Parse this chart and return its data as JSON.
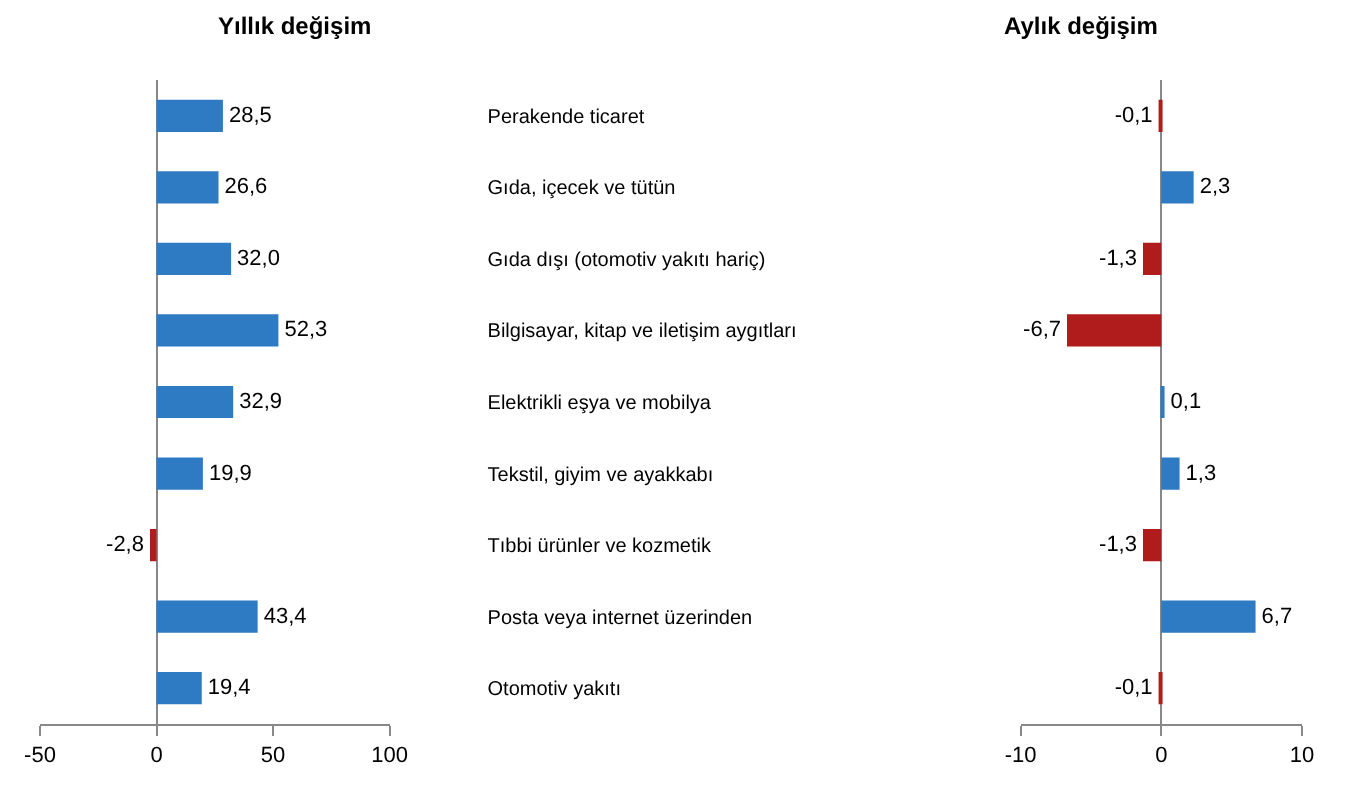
{
  "chart_data": [
    {
      "type": "bar",
      "orientation": "horizontal",
      "title": "Yıllık değişim",
      "categories": [
        "Perakende ticaret",
        "Gıda, içecek ve tütün",
        "Gıda dışı (otomotiv yakıtı hariç)",
        "Bilgisayar, kitap ve iletişim aygıtları",
        "Elektrikli eşya ve mobilya",
        "Tekstil, giyim ve ayakkabı",
        "Tıbbi ürünler ve kozmetik",
        "Posta veya internet üzerinden",
        "Otomotiv yakıtı"
      ],
      "values": [
        28.5,
        26.6,
        32.0,
        52.3,
        32.9,
        19.9,
        -2.8,
        43.4,
        19.4
      ],
      "value_labels": [
        "28,5",
        "26,6",
        "32,0",
        "52,3",
        "32,9",
        "19,9",
        "-2,8",
        "43,4",
        "19,4"
      ],
      "colors": [
        "#2e7bc4",
        "#2e7bc4",
        "#2e7bc4",
        "#2e7bc4",
        "#2e7bc4",
        "#2e7bc4",
        "#b01c1c",
        "#2e7bc4",
        "#2e7bc4"
      ],
      "xlim": [
        -50,
        100
      ],
      "xticks": [
        -50,
        0,
        50,
        100
      ],
      "legend": false
    },
    {
      "type": "bar",
      "orientation": "horizontal",
      "title": "Aylık değişim",
      "categories": [
        null,
        null,
        null,
        null,
        null,
        null,
        null,
        null,
        null
      ],
      "values": [
        -0.1,
        2.3,
        -1.3,
        -6.7,
        0.1,
        1.3,
        -1.3,
        6.7,
        -0.1
      ],
      "value_labels": [
        "-0,1",
        "2,3",
        "-1,3",
        "-6,7",
        "0,1",
        "1,3",
        "-1,3",
        "6,7",
        "-0,1"
      ],
      "colors": [
        "#b01c1c",
        "#2e7bc4",
        "#b01c1c",
        "#b01c1c",
        "#2e7bc4",
        "#2e7bc4",
        "#b01c1c",
        "#2e7bc4",
        "#b01c1c"
      ],
      "xlim": [
        -10,
        10
      ],
      "xticks": [
        -10,
        0,
        10
      ],
      "legend": false
    }
  ]
}
